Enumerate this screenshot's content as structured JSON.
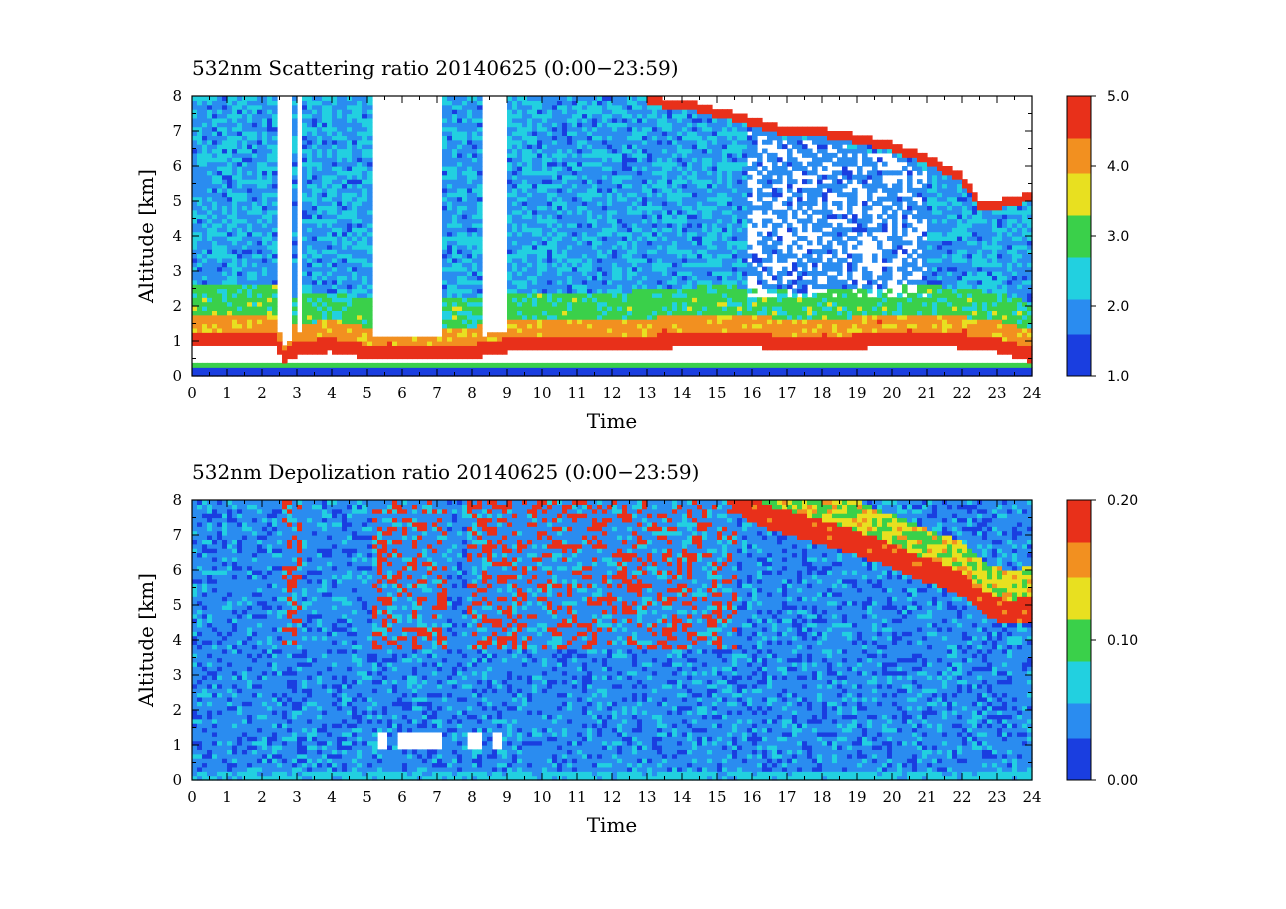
{
  "chart_data": [
    {
      "type": "heatmap",
      "title": "532nm Scattering ratio   20140625  (0:00−23:59)",
      "xlabel": "Time",
      "ylabel": "Altitude  [km]",
      "xlim": [
        0,
        24
      ],
      "ylim": [
        0,
        8
      ],
      "x_ticks": [
        "0",
        "1",
        "2",
        "3",
        "4",
        "5",
        "6",
        "7",
        "8",
        "9",
        "10",
        "11",
        "12",
        "13",
        "14",
        "15",
        "16",
        "17",
        "18",
        "19",
        "20",
        "21",
        "22",
        "23",
        "24"
      ],
      "y_ticks": [
        "0",
        "1",
        "2",
        "3",
        "4",
        "5",
        "6",
        "7",
        "8"
      ],
      "colorbar": {
        "min": 1.0,
        "max": 5.0,
        "ticks": [
          "1.0",
          "2.0",
          "3.0",
          "4.0",
          "5.0"
        ]
      },
      "grid": false,
      "features": {
        "boundary_layer_top_km": [
          [
            0,
            1.3
          ],
          [
            2.4,
            1.3
          ],
          [
            2.6,
            0.7
          ],
          [
            3.0,
            1.0
          ],
          [
            4.0,
            1.1
          ],
          [
            5.0,
            0.9
          ],
          [
            8.0,
            0.9
          ],
          [
            9.0,
            1.1
          ],
          [
            12.0,
            1.1
          ],
          [
            15.0,
            1.3
          ],
          [
            16.5,
            1.2
          ],
          [
            17.5,
            1.1
          ],
          [
            19.0,
            1.2
          ],
          [
            21.0,
            1.3
          ],
          [
            23.0,
            1.1
          ],
          [
            24.0,
            0.8
          ]
        ],
        "near_surface_layer_km": 0.3,
        "cloud_top_edge_km": [
          [
            13.0,
            8.0
          ],
          [
            14.5,
            7.8
          ],
          [
            16.0,
            7.4
          ],
          [
            17.0,
            7.1
          ],
          [
            18.0,
            7.1
          ],
          [
            19.0,
            6.9
          ],
          [
            20.0,
            6.7
          ],
          [
            21.0,
            6.3
          ],
          [
            22.0,
            5.8
          ],
          [
            22.5,
            5.0
          ],
          [
            23.5,
            5.1
          ],
          [
            24.0,
            5.3
          ]
        ],
        "low_signal_gaps_hours": [
          [
            2.5,
            2.8
          ],
          [
            3.0,
            3.2
          ],
          [
            5.2,
            7.2
          ],
          [
            8.3,
            8.7
          ],
          [
            8.7,
            9.0
          ]
        ]
      }
    },
    {
      "type": "heatmap",
      "title": "532nm Depolization ratio   20140625  (0:00−23:59)",
      "xlabel": "Time",
      "ylabel": "Altitude  [km]",
      "xlim": [
        0,
        24
      ],
      "ylim": [
        0,
        8
      ],
      "x_ticks": [
        "0",
        "1",
        "2",
        "3",
        "4",
        "5",
        "6",
        "7",
        "8",
        "9",
        "10",
        "11",
        "12",
        "13",
        "14",
        "15",
        "16",
        "17",
        "18",
        "19",
        "20",
        "21",
        "22",
        "23",
        "24"
      ],
      "y_ticks": [
        "0",
        "1",
        "2",
        "3",
        "4",
        "5",
        "6",
        "7",
        "8"
      ],
      "colorbar": {
        "min": 0.0,
        "max": 0.2,
        "ticks": [
          "0.00",
          "0.10",
          "0.20"
        ]
      },
      "grid": false,
      "features": {
        "high_depol_cloud_edge_km": [
          [
            15.5,
            8.0
          ],
          [
            16.5,
            7.5
          ],
          [
            18.0,
            7.1
          ],
          [
            19.5,
            6.6
          ],
          [
            21.0,
            6.0
          ],
          [
            22.0,
            5.6
          ],
          [
            22.7,
            5.0
          ],
          [
            23.3,
            4.8
          ],
          [
            24.0,
            4.9
          ]
        ],
        "noisy_columns_hours": [
          [
            2.6,
            3.2
          ],
          [
            5.2,
            7.3
          ],
          [
            7.9,
            9.0
          ],
          [
            9.0,
            15.5
          ]
        ],
        "low_cloud_blocks": [
          [
            5.3,
            5.6
          ],
          [
            5.9,
            7.2
          ],
          [
            7.9,
            8.3
          ],
          [
            8.6,
            8.9
          ]
        ],
        "low_cloud_block_altitude_km": [
          0.9,
          1.4
        ]
      }
    }
  ],
  "colors": {
    "scale": [
      "#1a3ee0",
      "#2a8cf0",
      "#22d0e0",
      "#3ad04a",
      "#e8e020",
      "#f29020",
      "#e8301a"
    ],
    "missing": "#ffffff",
    "axis": "#000000"
  }
}
